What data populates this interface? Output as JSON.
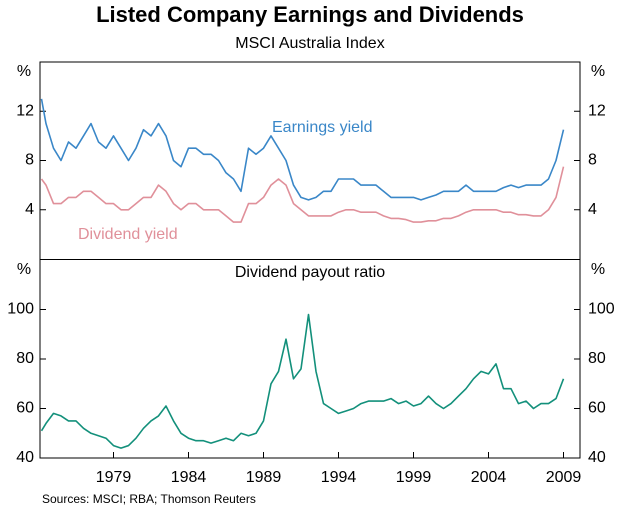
{
  "title": "Listed Company Earnings and Dividends",
  "subtitle": "MSCI Australia Index",
  "source": "Sources: MSCI; RBA; Thomson Reuters",
  "chart_data": [
    {
      "type": "line",
      "y_label": "%",
      "ylim": [
        0,
        16
      ],
      "yticks": [
        4,
        8,
        12
      ],
      "xlim": [
        1974.1,
        2010.1
      ],
      "x": [
        1974.2,
        1974.5,
        1975,
        1975.5,
        1976,
        1976.5,
        1977,
        1977.5,
        1978,
        1978.5,
        1979,
        1979.5,
        1980,
        1980.5,
        1981,
        1981.5,
        1982,
        1982.5,
        1983,
        1983.5,
        1984,
        1984.5,
        1985,
        1985.5,
        1986,
        1986.5,
        1987,
        1987.5,
        1988,
        1988.5,
        1989,
        1989.5,
        1990,
        1990.5,
        1991,
        1991.5,
        1992,
        1992.5,
        1993,
        1993.5,
        1994,
        1994.5,
        1995,
        1995.5,
        1996,
        1996.5,
        1997,
        1997.5,
        1998,
        1998.5,
        1999,
        1999.5,
        2000,
        2000.5,
        2001,
        2001.5,
        2002,
        2002.5,
        2003,
        2003.5,
        2004,
        2004.5,
        2005,
        2005.5,
        2006,
        2006.5,
        2007,
        2007.5,
        2008,
        2008.5,
        2009
      ],
      "series": [
        {
          "name": "Earnings yield",
          "color": "#3a87c8",
          "values": [
            13,
            11,
            9,
            8,
            9.5,
            9,
            10,
            11,
            9.5,
            9,
            10,
            9,
            8,
            9,
            10.5,
            10,
            11,
            10,
            8,
            7.5,
            9,
            9,
            8.5,
            8.5,
            8,
            7,
            6.5,
            5.5,
            9,
            8.5,
            9,
            10,
            9,
            8,
            6,
            5,
            4.8,
            5,
            5.5,
            5.5,
            6.5,
            6.5,
            6.5,
            6,
            6,
            6,
            5.5,
            5,
            5,
            5,
            5,
            4.8,
            5,
            5.2,
            5.5,
            5.5,
            5.5,
            6,
            5.5,
            5.5,
            5.5,
            5.5,
            5.8,
            6,
            5.8,
            6,
            6,
            6,
            6.5,
            8,
            10.5
          ]
        },
        {
          "name": "Dividend yield",
          "color": "#e0909a",
          "values": [
            6.5,
            6,
            4.5,
            4.5,
            5,
            5,
            5.5,
            5.5,
            5,
            4.5,
            4.5,
            4,
            4,
            4.5,
            5,
            5,
            6,
            5.5,
            4.5,
            4,
            4.5,
            4.5,
            4,
            4,
            4,
            3.5,
            3,
            3,
            4.5,
            4.5,
            5,
            6,
            6.5,
            6,
            4.5,
            4,
            3.5,
            3.5,
            3.5,
            3.5,
            3.8,
            4,
            4,
            3.8,
            3.8,
            3.8,
            3.5,
            3.3,
            3.3,
            3.2,
            3,
            3,
            3.1,
            3.1,
            3.3,
            3.3,
            3.5,
            3.8,
            4,
            4,
            4,
            4,
            3.8,
            3.8,
            3.6,
            3.6,
            3.5,
            3.5,
            4,
            5,
            7.5
          ]
        }
      ]
    },
    {
      "type": "line",
      "title": "Dividend payout ratio",
      "y_label": "%",
      "ylim": [
        40,
        120
      ],
      "yticks": [
        40,
        60,
        80,
        100
      ],
      "xlim": [
        1974.1,
        2010.1
      ],
      "xticks": [
        1979,
        1984,
        1989,
        1994,
        1999,
        2004,
        2009
      ],
      "x": [
        1974.2,
        1974.5,
        1975,
        1975.5,
        1976,
        1976.5,
        1977,
        1977.5,
        1978,
        1978.5,
        1979,
        1979.5,
        1980,
        1980.5,
        1981,
        1981.5,
        1982,
        1982.5,
        1983,
        1983.5,
        1984,
        1984.5,
        1985,
        1985.5,
        1986,
        1986.5,
        1987,
        1987.5,
        1988,
        1988.5,
        1989,
        1989.5,
        1990,
        1990.5,
        1991,
        1991.5,
        1992,
        1992.5,
        1993,
        1993.5,
        1994,
        1994.5,
        1995,
        1995.5,
        1996,
        1996.5,
        1997,
        1997.5,
        1998,
        1998.5,
        1999,
        1999.5,
        2000,
        2000.5,
        2001,
        2001.5,
        2002,
        2002.5,
        2003,
        2003.5,
        2004,
        2004.5,
        2005,
        2005.5,
        2006,
        2006.5,
        2007,
        2007.5,
        2008,
        2008.5,
        2009
      ],
      "series": [
        {
          "name": "Dividend payout ratio",
          "color": "#13907b",
          "values": [
            51,
            54,
            58,
            57,
            55,
            55,
            52,
            50,
            49,
            48,
            45,
            44,
            45,
            48,
            52,
            55,
            57,
            61,
            55,
            50,
            48,
            47,
            47,
            46,
            47,
            48,
            47,
            50,
            49,
            50,
            55,
            70,
            75,
            88,
            72,
            76,
            98,
            75,
            62,
            60,
            58,
            59,
            60,
            62,
            63,
            63,
            63,
            64,
            62,
            63,
            61,
            62,
            65,
            62,
            60,
            62,
            65,
            68,
            72,
            75,
            74,
            78,
            68,
            68,
            62,
            63,
            60,
            62,
            62,
            64,
            72
          ]
        }
      ]
    }
  ]
}
